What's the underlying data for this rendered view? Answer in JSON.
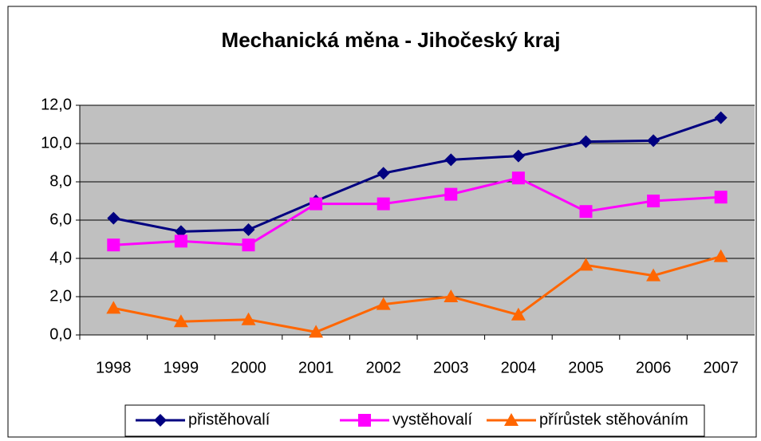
{
  "chart_data": {
    "type": "line",
    "title": "Mechanická měna - Jihočeský kraj",
    "categories": [
      "1998",
      "1999",
      "2000",
      "2001",
      "2002",
      "2003",
      "2004",
      "2005",
      "2006",
      "2007"
    ],
    "series": [
      {
        "name": "přistěhovalí",
        "color": "#000080",
        "marker": "diamond",
        "values": [
          6.1,
          5.4,
          5.5,
          7.0,
          8.45,
          9.15,
          9.35,
          10.1,
          10.15,
          11.35
        ]
      },
      {
        "name": "vystěhovalí",
        "color": "#ff00ff",
        "marker": "square",
        "values": [
          4.7,
          4.9,
          4.7,
          6.85,
          6.85,
          7.35,
          8.2,
          6.45,
          7.0,
          7.2
        ]
      },
      {
        "name": "přírůstek stěhováním",
        "color": "#ff6600",
        "marker": "triangle",
        "values": [
          1.4,
          0.7,
          0.8,
          0.15,
          1.6,
          2.0,
          1.05,
          3.65,
          3.1,
          4.1
        ]
      }
    ],
    "ylim": [
      0,
      12
    ],
    "yticks": [
      {
        "value": 0,
        "label": "0,0"
      },
      {
        "value": 2,
        "label": "2,0"
      },
      {
        "value": 4,
        "label": "4,0"
      },
      {
        "value": 6,
        "label": "6,0"
      },
      {
        "value": 8,
        "label": "8,0"
      },
      {
        "value": 10,
        "label": "10,0"
      },
      {
        "value": 12,
        "label": "12,0"
      }
    ],
    "grid": true,
    "legend": "bottom"
  }
}
